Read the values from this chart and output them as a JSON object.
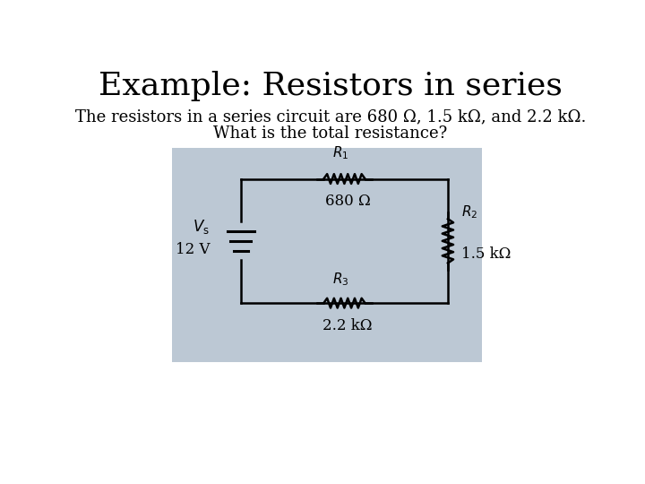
{
  "title": "Example: Resistors in series",
  "line1": "The resistors in a series circuit are 680 Ω, 1.5 kΩ, and 2.2 kΩ.",
  "line2": "What is the total resistance?",
  "bg_color": "#bcc8d4",
  "r1_label": "$R_1$",
  "r1_value": "680 Ω",
  "r2_label": "$R_2$",
  "r2_value": "1.5 kΩ",
  "r3_label": "$R_3$",
  "r3_value": "2.2 kΩ",
  "vs_label": "$V_\\mathrm{s}$",
  "vs_value": "12 V",
  "title_fontsize": 26,
  "body_fontsize": 13
}
